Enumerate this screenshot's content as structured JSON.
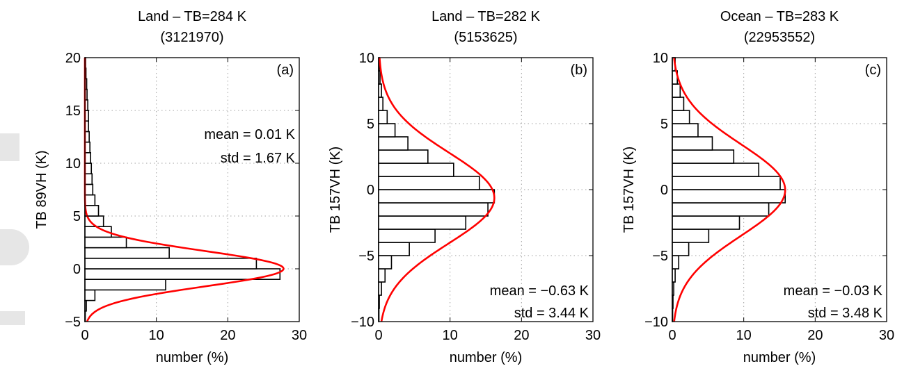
{
  "chart_data": [
    {
      "type": "bar",
      "orientation": "horizontal",
      "title": "Land – TB=284 K",
      "subtitle": "(3121970)",
      "panel_label": "(a)",
      "xlabel": "number (%)",
      "ylabel": "TB 89VH (K)",
      "xlim": [
        0,
        30
      ],
      "ylim": [
        -5,
        20
      ],
      "xticks": [
        "0",
        "10",
        "20",
        "30"
      ],
      "yticks": [
        "−5",
        "0",
        "5",
        "10",
        "15",
        "20"
      ],
      "grid": true,
      "stats": [
        "mean = 0.01 K",
        "std = 1.67 K"
      ],
      "stats_position": "upper-right",
      "bin_width": 1,
      "bins": [
        {
          "lo": -5,
          "hi": -4,
          "value": 0.05
        },
        {
          "lo": -4,
          "hi": -3,
          "value": 0.2
        },
        {
          "lo": -3,
          "hi": -2,
          "value": 1.4
        },
        {
          "lo": -2,
          "hi": -1,
          "value": 11.3
        },
        {
          "lo": -1,
          "hi": 0,
          "value": 27.3
        },
        {
          "lo": 0,
          "hi": 1,
          "value": 24.0
        },
        {
          "lo": 1,
          "hi": 2,
          "value": 11.8
        },
        {
          "lo": 2,
          "hi": 3,
          "value": 5.8
        },
        {
          "lo": 3,
          "hi": 4,
          "value": 3.7
        },
        {
          "lo": 4,
          "hi": 5,
          "value": 2.6
        },
        {
          "lo": 5,
          "hi": 6,
          "value": 1.9
        },
        {
          "lo": 6,
          "hi": 7,
          "value": 1.4
        },
        {
          "lo": 7,
          "hi": 8,
          "value": 1.1
        },
        {
          "lo": 8,
          "hi": 9,
          "value": 1.0
        },
        {
          "lo": 9,
          "hi": 10,
          "value": 0.9
        },
        {
          "lo": 10,
          "hi": 11,
          "value": 0.8
        },
        {
          "lo": 11,
          "hi": 12,
          "value": 0.7
        },
        {
          "lo": 12,
          "hi": 13,
          "value": 0.6
        },
        {
          "lo": 13,
          "hi": 14,
          "value": 0.5
        },
        {
          "lo": 14,
          "hi": 15,
          "value": 0.5
        },
        {
          "lo": 15,
          "hi": 16,
          "value": 0.4
        },
        {
          "lo": 16,
          "hi": 17,
          "value": 0.3
        },
        {
          "lo": 17,
          "hi": 18,
          "value": 0.25
        },
        {
          "lo": 18,
          "hi": 19,
          "value": 0.15
        },
        {
          "lo": 19,
          "hi": 20,
          "value": 0.1
        }
      ],
      "fit_curve": {
        "mean": 0.01,
        "std": 1.67,
        "peak": 27.8
      },
      "colors": {
        "bars_edge": "#000000",
        "bars_fill": "#ffffff",
        "fit": "#ff0000",
        "grid": "#a0a0a0"
      }
    },
    {
      "type": "bar",
      "orientation": "horizontal",
      "title": "Land – TB=282 K",
      "subtitle": "(5153625)",
      "panel_label": "(b)",
      "xlabel": "number (%)",
      "ylabel": "TB 157VH (K)",
      "xlim": [
        0,
        30
      ],
      "ylim": [
        -10,
        10
      ],
      "xticks": [
        "0",
        "10",
        "20",
        "30"
      ],
      "yticks": [
        "−10",
        "−5",
        "0",
        "5",
        "10"
      ],
      "grid": true,
      "stats": [
        "mean = −0.63 K",
        "std = 3.44 K"
      ],
      "stats_position": "lower-right",
      "bin_width": 1,
      "bins": [
        {
          "lo": -10,
          "hi": -9,
          "value": 0.05
        },
        {
          "lo": -9,
          "hi": -8,
          "value": 0.1
        },
        {
          "lo": -8,
          "hi": -7,
          "value": 0.4
        },
        {
          "lo": -7,
          "hi": -6,
          "value": 0.9
        },
        {
          "lo": -6,
          "hi": -5,
          "value": 1.8
        },
        {
          "lo": -5,
          "hi": -4,
          "value": 4.3
        },
        {
          "lo": -4,
          "hi": -3,
          "value": 7.9
        },
        {
          "lo": -3,
          "hi": -2,
          "value": 12.2
        },
        {
          "lo": -2,
          "hi": -1,
          "value": 15.3
        },
        {
          "lo": -1,
          "hi": 0,
          "value": 16.2
        },
        {
          "lo": 0,
          "hi": 1,
          "value": 14.1
        },
        {
          "lo": 1,
          "hi": 2,
          "value": 10.5
        },
        {
          "lo": 2,
          "hi": 3,
          "value": 6.9
        },
        {
          "lo": 3,
          "hi": 4,
          "value": 4.1
        },
        {
          "lo": 4,
          "hi": 5,
          "value": 2.3
        },
        {
          "lo": 5,
          "hi": 6,
          "value": 1.2
        },
        {
          "lo": 6,
          "hi": 7,
          "value": 0.6
        },
        {
          "lo": 7,
          "hi": 8,
          "value": 0.4
        },
        {
          "lo": 8,
          "hi": 9,
          "value": 0.2
        },
        {
          "lo": 9,
          "hi": 10,
          "value": 0.1
        }
      ],
      "fit_curve": {
        "mean": -0.63,
        "std": 3.44,
        "peak": 16.2
      },
      "colors": {
        "bars_edge": "#000000",
        "bars_fill": "#ffffff",
        "fit": "#ff0000",
        "grid": "#a0a0a0"
      }
    },
    {
      "type": "bar",
      "orientation": "horizontal",
      "title": "Ocean – TB=283 K",
      "subtitle": "(22953552)",
      "panel_label": "(c)",
      "xlabel": "number (%)",
      "ylabel": "TB 157VH (K)",
      "xlim": [
        0,
        30
      ],
      "ylim": [
        -10,
        10
      ],
      "xticks": [
        "0",
        "10",
        "20",
        "30"
      ],
      "yticks": [
        "−10",
        "−5",
        "0",
        "5",
        "10"
      ],
      "grid": true,
      "stats": [
        "mean = −0.03 K",
        "std = 3.48 K"
      ],
      "stats_position": "lower-right",
      "bin_width": 1,
      "bins": [
        {
          "lo": -10,
          "hi": -9,
          "value": 0.05
        },
        {
          "lo": -9,
          "hi": -8,
          "value": 0.1
        },
        {
          "lo": -8,
          "hi": -7,
          "value": 0.2
        },
        {
          "lo": -7,
          "hi": -6,
          "value": 0.4
        },
        {
          "lo": -6,
          "hi": -5,
          "value": 0.9
        },
        {
          "lo": -5,
          "hi": -4,
          "value": 2.3
        },
        {
          "lo": -4,
          "hi": -3,
          "value": 5.1
        },
        {
          "lo": -3,
          "hi": -2,
          "value": 9.4
        },
        {
          "lo": -2,
          "hi": -1,
          "value": 13.5
        },
        {
          "lo": -1,
          "hi": 0,
          "value": 15.8
        },
        {
          "lo": 0,
          "hi": 1,
          "value": 15.1
        },
        {
          "lo": 1,
          "hi": 2,
          "value": 12.1
        },
        {
          "lo": 2,
          "hi": 3,
          "value": 8.6
        },
        {
          "lo": 3,
          "hi": 4,
          "value": 5.6
        },
        {
          "lo": 4,
          "hi": 5,
          "value": 3.6
        },
        {
          "lo": 5,
          "hi": 6,
          "value": 2.4
        },
        {
          "lo": 6,
          "hi": 7,
          "value": 1.6
        },
        {
          "lo": 7,
          "hi": 8,
          "value": 1.1
        },
        {
          "lo": 8,
          "hi": 9,
          "value": 0.7
        },
        {
          "lo": 9,
          "hi": 10,
          "value": 0.4
        }
      ],
      "fit_curve": {
        "mean": -0.03,
        "std": 3.48,
        "peak": 15.8
      },
      "colors": {
        "bars_edge": "#000000",
        "bars_fill": "#ffffff",
        "fit": "#ff0000",
        "grid": "#a0a0a0"
      }
    }
  ]
}
